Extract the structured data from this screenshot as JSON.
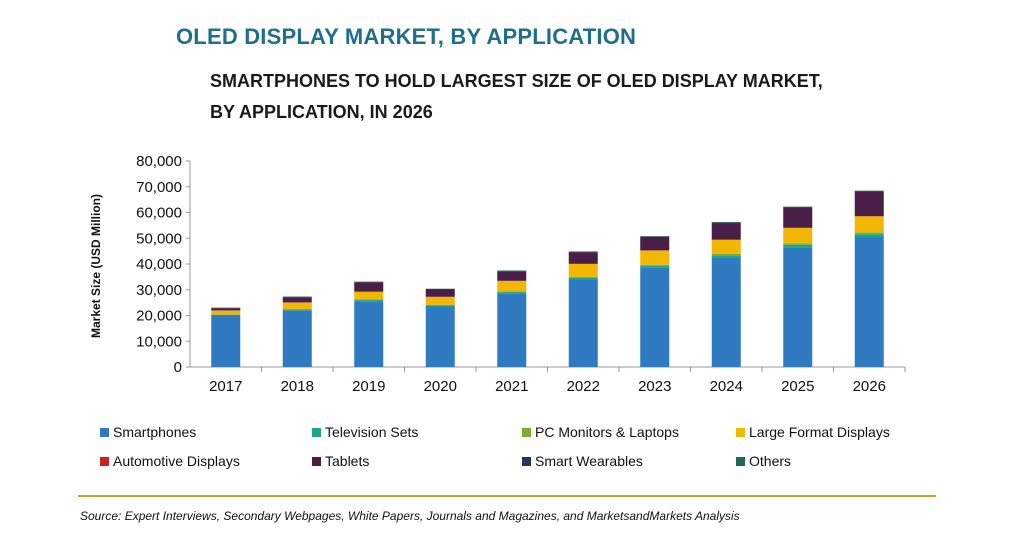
{
  "header": {
    "title": "OLED DISPLAY MARKET, BY APPLICATION",
    "subtitle_line1": "SMARTPHONES TO HOLD LARGEST SIZE OF OLED DISPLAY MARKET,",
    "subtitle_line2": "BY APPLICATION, IN 2026"
  },
  "source": "Source: Expert Interviews, Secondary Webpages, White Papers, Journals and Magazines, and MarketsandMarkets Analysis",
  "colors": {
    "Smartphones": "#2f7ac0",
    "Television Sets": "#1aa58f",
    "PC Monitors & Laptops": "#7cad2f",
    "Large Format Displays": "#f2b705",
    "Automotive Displays": "#c8241d",
    "Tablets": "#4a1f47",
    "Smart Wearables": "#1f3b5c",
    "Others": "#1f6a4f",
    "rule": "#c9a227"
  },
  "chart_data": {
    "type": "bar",
    "stacked": true,
    "categories": [
      "2017",
      "2018",
      "2019",
      "2020",
      "2021",
      "2022",
      "2023",
      "2024",
      "2025",
      "2026"
    ],
    "ylabel": "Market Size (USD Million)",
    "ylim": [
      0,
      80000
    ],
    "yticks": [
      "0",
      "10,000",
      "20,000",
      "30,000",
      "40,000",
      "50,000",
      "60,000",
      "70,000",
      "80,000"
    ],
    "ytick_values": [
      0,
      10000,
      20000,
      30000,
      40000,
      50000,
      60000,
      70000,
      80000
    ],
    "legend_position": "bottom",
    "series": [
      {
        "name": "Smartphones",
        "values": [
          20000,
          22000,
          25500,
          23500,
          28500,
          34000,
          38500,
          42500,
          46500,
          50500
        ]
      },
      {
        "name": "Television Sets",
        "values": [
          300,
          400,
          500,
          500,
          600,
          700,
          800,
          900,
          1000,
          1100
        ]
      },
      {
        "name": "PC Monitors & Laptops",
        "values": [
          100,
          100,
          200,
          200,
          300,
          300,
          400,
          500,
          500,
          600
        ]
      },
      {
        "name": "Large Format Displays",
        "values": [
          1500,
          2500,
          3000,
          3000,
          4000,
          5000,
          5500,
          5500,
          6000,
          6300
        ]
      },
      {
        "name": "Automotive Displays",
        "values": [
          100,
          100,
          100,
          100,
          100,
          100,
          100,
          100,
          100,
          100
        ]
      },
      {
        "name": "Tablets",
        "values": [
          800,
          2000,
          3600,
          2800,
          3700,
          4500,
          5200,
          6400,
          7800,
          9400
        ]
      },
      {
        "name": "Smart Wearables",
        "values": [
          200,
          200,
          200,
          200,
          200,
          200,
          200,
          300,
          300,
          400
        ]
      },
      {
        "name": "Others",
        "values": [
          100,
          100,
          100,
          100,
          100,
          100,
          100,
          100,
          100,
          100
        ]
      }
    ]
  }
}
